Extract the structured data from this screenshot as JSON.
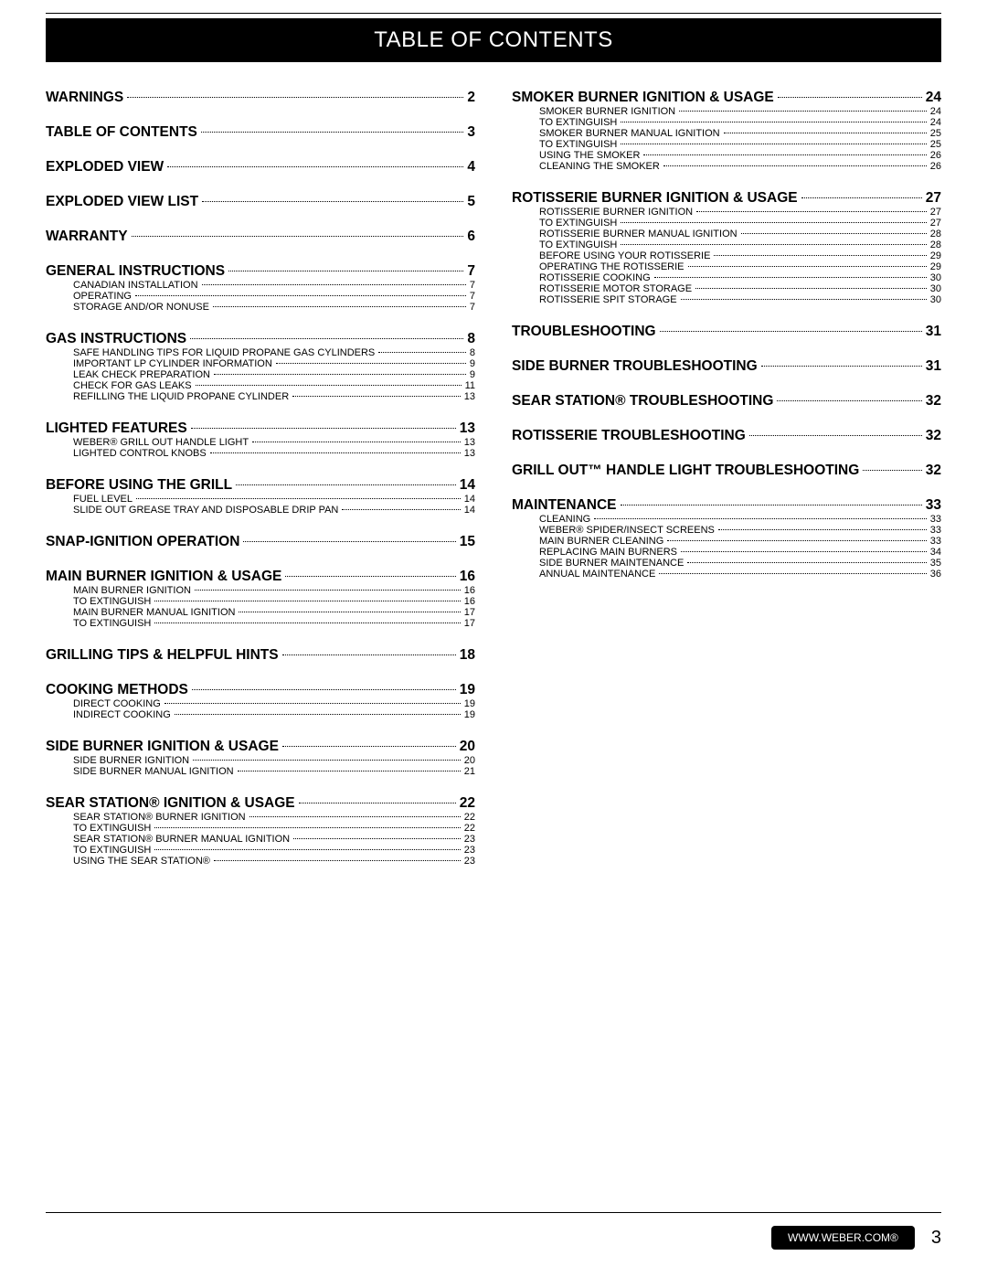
{
  "title": "TABLE OF CONTENTS",
  "footer_text": "WWW.WEBER.COM®",
  "footer_page": "3",
  "left": [
    {
      "type": "top",
      "label": "WARNINGS",
      "page": "2"
    },
    {
      "type": "top",
      "label": "TABLE OF CONTENTS",
      "page": "3"
    },
    {
      "type": "top",
      "label": "EXPLODED VIEW",
      "page": "4"
    },
    {
      "type": "top",
      "label": "EXPLODED VIEW LIST",
      "page": "5"
    },
    {
      "type": "top",
      "label": "WARRANTY",
      "page": "6"
    },
    {
      "type": "top",
      "label": "GENERAL INSTRUCTIONS",
      "page": "7",
      "subs": [
        {
          "label": "CANADIAN INSTALLATION",
          "page": "7"
        },
        {
          "label": "OPERATING",
          "page": "7"
        },
        {
          "label": "STORAGE AND/OR NONUSE",
          "page": "7"
        }
      ]
    },
    {
      "type": "top",
      "label": "GAS INSTRUCTIONS",
      "page": "8",
      "subs": [
        {
          "label": "SAFE HANDLING TIPS FOR LIQUID PROPANE GAS CYLINDERS",
          "page": "8"
        },
        {
          "label": "IMPORTANT LP CYLINDER INFORMATION",
          "page": "9"
        },
        {
          "label": "LEAK CHECK PREPARATION",
          "page": "9"
        },
        {
          "label": "CHECK FOR GAS LEAKS",
          "page": "11"
        },
        {
          "label": "REFILLING THE LIQUID PROPANE CYLINDER",
          "page": "13"
        }
      ]
    },
    {
      "type": "top",
      "label": "LIGHTED FEATURES",
      "page": "13",
      "subs": [
        {
          "label": "WEBER® GRILL OUT  HANDLE LIGHT",
          "page": "13"
        },
        {
          "label": "LIGHTED CONTROL KNOBS",
          "page": "13"
        }
      ]
    },
    {
      "type": "top",
      "label": "BEFORE USING THE GRILL",
      "page": "14",
      "subs": [
        {
          "label": "FUEL LEVEL",
          "page": "14"
        },
        {
          "label": "SLIDE OUT GREASE TRAY AND DISPOSABLE DRIP PAN",
          "page": "14"
        }
      ]
    },
    {
      "type": "top",
      "label": "SNAP-IGNITION OPERATION",
      "page": "15"
    },
    {
      "type": "top",
      "label": "MAIN BURNER IGNITION & USAGE",
      "page": "16",
      "subs": [
        {
          "label": "MAIN BURNER IGNITION",
          "page": "16"
        },
        {
          "label": "TO EXTINGUISH",
          "page": "16"
        },
        {
          "label": "MAIN BURNER MANUAL IGNITION",
          "page": "17"
        },
        {
          "label": "TO EXTINGUISH",
          "page": "17"
        }
      ]
    },
    {
      "type": "top",
      "label": "GRILLING TIPS & HELPFUL HINTS",
      "page": "18"
    },
    {
      "type": "top",
      "label": "COOKING METHODS",
      "page": "19",
      "subs": [
        {
          "label": "DIRECT COOKING",
          "page": "19"
        },
        {
          "label": "INDIRECT COOKING",
          "page": "19"
        }
      ]
    },
    {
      "type": "top",
      "label": "SIDE BURNER IGNITION & USAGE",
      "page": "20",
      "subs": [
        {
          "label": "SIDE BURNER IGNITION",
          "page": "20"
        },
        {
          "label": "SIDE BURNER MANUAL IGNITION",
          "page": "21"
        }
      ]
    },
    {
      "type": "top",
      "label": "SEAR STATION® IGNITION & USAGE",
      "page": "22",
      "subs": [
        {
          "label": "SEAR STATION® BURNER IGNITION",
          "page": "22"
        },
        {
          "label": "TO EXTINGUISH",
          "page": "22"
        },
        {
          "label": "SEAR STATION® BURNER MANUAL IGNITION",
          "page": "23"
        },
        {
          "label": "TO EXTINGUISH",
          "page": "23"
        },
        {
          "label": "USING THE SEAR STATION®",
          "page": "23"
        }
      ]
    }
  ],
  "right": [
    {
      "type": "top",
      "label": "SMOKER BURNER IGNITION & USAGE",
      "page": "24",
      "subs": [
        {
          "label": "SMOKER BURNER IGNITION",
          "page": "24"
        },
        {
          "label": "TO EXTINGUISH",
          "page": "24"
        },
        {
          "label": "SMOKER BURNER MANUAL IGNITION",
          "page": "25"
        },
        {
          "label": "TO EXTINGUISH",
          "page": "25"
        },
        {
          "label": "USING THE SMOKER",
          "page": "26"
        },
        {
          "label": "CLEANING THE SMOKER",
          "page": "26"
        }
      ]
    },
    {
      "type": "top",
      "label": "ROTISSERIE BURNER IGNITION & USAGE",
      "page": "27",
      "subs": [
        {
          "label": "ROTISSERIE BURNER IGNITION",
          "page": "27"
        },
        {
          "label": "TO EXTINGUISH",
          "page": "27"
        },
        {
          "label": "ROTISSERIE BURNER MANUAL IGNITION",
          "page": "28"
        },
        {
          "label": "TO EXTINGUISH",
          "page": "28"
        },
        {
          "label": "BEFORE USING YOUR ROTISSERIE",
          "page": "29"
        },
        {
          "label": "OPERATING THE ROTISSERIE",
          "page": "29"
        },
        {
          "label": "ROTISSERIE COOKING",
          "page": "30"
        },
        {
          "label": "ROTISSERIE MOTOR STORAGE",
          "page": "30"
        },
        {
          "label": "ROTISSERIE SPIT STORAGE",
          "page": "30"
        }
      ]
    },
    {
      "type": "top",
      "label": "TROUBLESHOOTING",
      "page": "31"
    },
    {
      "type": "top",
      "label": "SIDE BURNER TROUBLESHOOTING",
      "page": "31"
    },
    {
      "type": "top",
      "label": "SEAR STATION® TROUBLESHOOTING",
      "page": "32"
    },
    {
      "type": "top",
      "label": "ROTISSERIE TROUBLESHOOTING",
      "page": "32"
    },
    {
      "type": "top",
      "label": "GRILL OUT™ HANDLE LIGHT TROUBLESHOOTING",
      "page": "32"
    },
    {
      "type": "top",
      "label": "MAINTENANCE",
      "page": "33",
      "subs": [
        {
          "label": "CLEANING",
          "page": "33"
        },
        {
          "label": "WEBER® SPIDER/INSECT SCREENS",
          "page": "33"
        },
        {
          "label": "MAIN BURNER CLEANING",
          "page": "33"
        },
        {
          "label": "REPLACING MAIN BURNERS",
          "page": "34"
        },
        {
          "label": "SIDE BURNER MAINTENANCE",
          "page": "35"
        },
        {
          "label": "ANNUAL MAINTENANCE",
          "page": "36"
        }
      ]
    }
  ]
}
